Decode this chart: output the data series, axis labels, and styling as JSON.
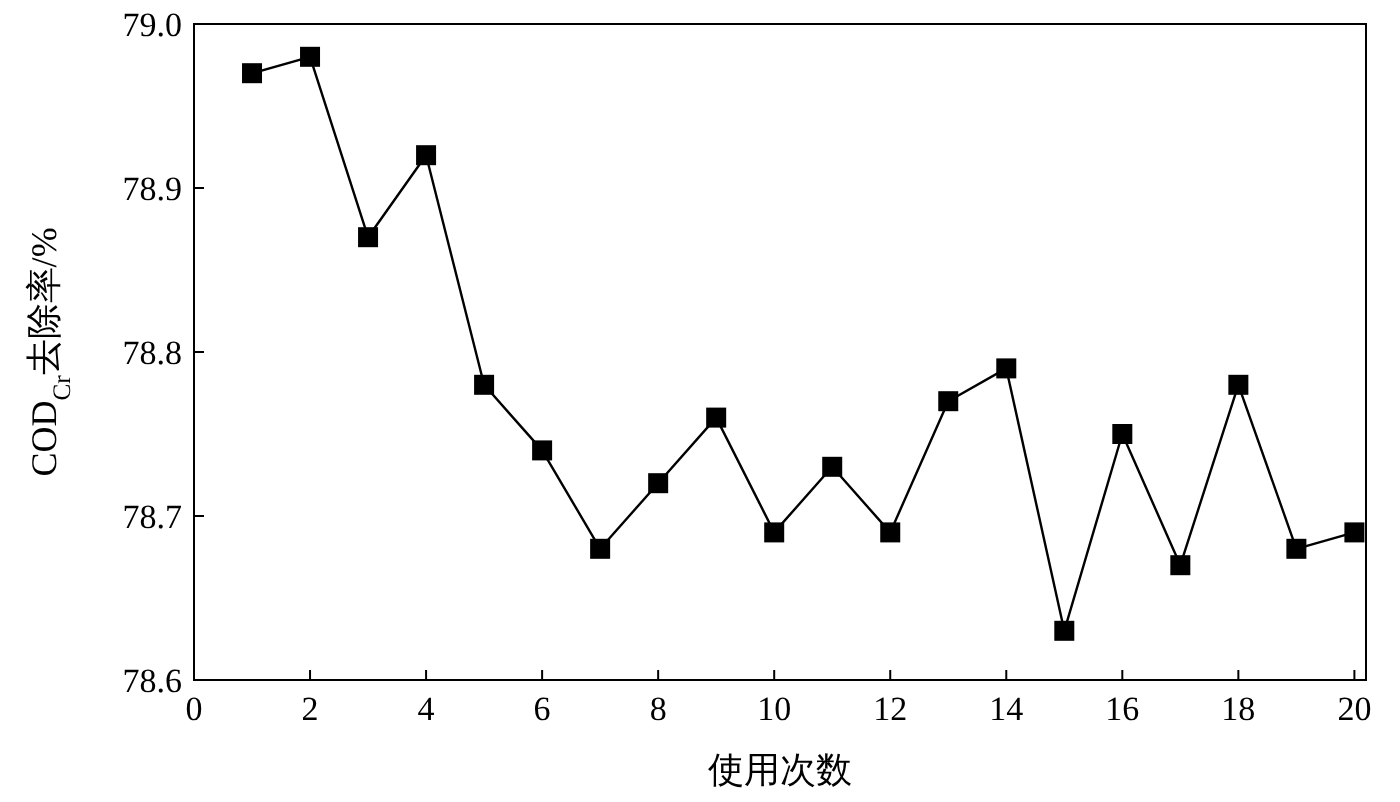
{
  "chart_data": {
    "type": "line",
    "xlabel": "使用次数",
    "ylabel": "COD$_{Cr}$去除率/%",
    "x": [
      1,
      2,
      3,
      4,
      5,
      6,
      7,
      8,
      9,
      10,
      11,
      12,
      13,
      14,
      15,
      16,
      17,
      18,
      19,
      20
    ],
    "series": [
      {
        "color": "#000000",
        "values": [
          78.97,
          78.98,
          78.87,
          78.92,
          78.78,
          78.74,
          78.68,
          78.72,
          78.76,
          78.69,
          78.73,
          78.69,
          78.77,
          78.79,
          78.63,
          78.75,
          78.67,
          78.78,
          78.68,
          78.69
        ]
      }
    ],
    "xlim": [
      0,
      20.2
    ],
    "xticks": [
      0,
      2,
      4,
      6,
      8,
      10,
      12,
      14,
      16,
      18,
      20
    ],
    "ylim": [
      78.6,
      79.0
    ],
    "yticks": [
      {
        "value": 78.6,
        "label": "78.6"
      },
      {
        "value": 78.7,
        "label": "78.7"
      },
      {
        "value": 78.8,
        "label": "78.8"
      },
      {
        "value": 78.9,
        "label": "78.9"
      },
      {
        "value": 79.0,
        "label": "79.0"
      }
    ],
    "marker": "square",
    "line_style": "solid",
    "grid": false
  }
}
